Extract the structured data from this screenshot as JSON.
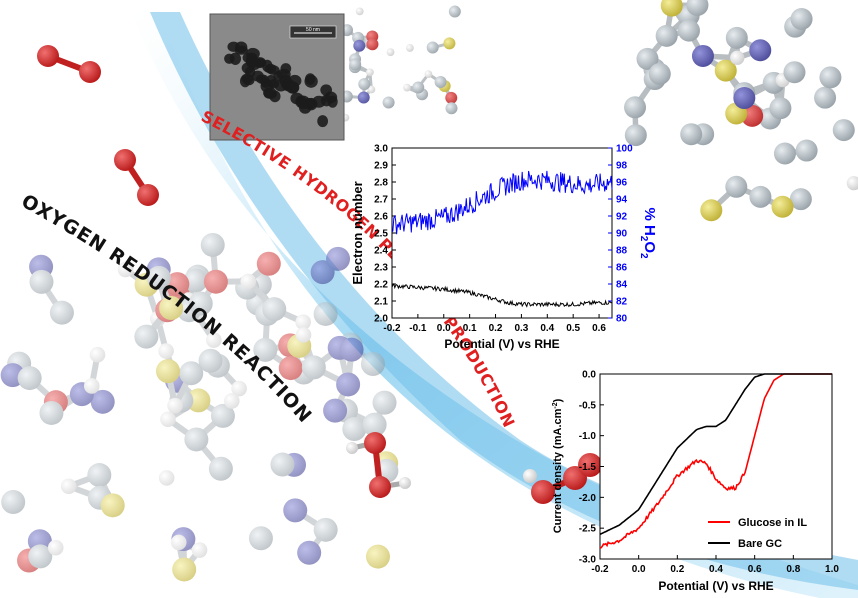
{
  "banner_top": "SELECTIVE HYDROGEN PEROXIDE PRODUCTION",
  "banner_bottom": "OXYGEN REDUCTION REACTION",
  "tem_scale_label": "50 nm",
  "colors": {
    "oxygen": "#d42a2a",
    "nitrogen": "#4a4aa8",
    "sulfur": "#d6c83a",
    "carbon": "#9aa6ad",
    "hydrogen": "#ffffff",
    "swoosh": "#7cc6ec",
    "banner_red": "#e02020",
    "blue_series": "#0000ff",
    "red_series": "#ff0000",
    "black_series": "#000000"
  },
  "chart_data": [
    {
      "type": "line",
      "xlabel": "Potential (V) vs RHE",
      "ylabel": "Electron number",
      "y2label_prefix": "% H",
      "y2label_sub1": "2",
      "y2label_mid": "O",
      "y2label_sub2": "2",
      "xlim": [
        -0.2,
        0.65
      ],
      "ylim": [
        2.0,
        3.0
      ],
      "y2lim": [
        80,
        100
      ],
      "xticks": [
        "-0.2",
        "-0.1",
        "0.0",
        "0.1",
        "0.2",
        "0.3",
        "0.4",
        "0.5",
        "0.6"
      ],
      "yticks": [
        "2.0",
        "2.1",
        "2.2",
        "2.3",
        "2.4",
        "2.5",
        "2.6",
        "2.7",
        "2.8",
        "2.9",
        "3.0"
      ],
      "y2ticks": [
        "80",
        "82",
        "84",
        "86",
        "88",
        "90",
        "92",
        "94",
        "96",
        "98",
        "100"
      ],
      "series": [
        {
          "axis": "left",
          "color": "#000000",
          "x": [
            -0.2,
            -0.1,
            0.0,
            0.1,
            0.15,
            0.2,
            0.25,
            0.3,
            0.4,
            0.5,
            0.6,
            0.65
          ],
          "y": [
            2.19,
            2.18,
            2.17,
            2.15,
            2.13,
            2.11,
            2.09,
            2.08,
            2.08,
            2.08,
            2.09,
            2.09
          ]
        },
        {
          "axis": "right",
          "color": "#0000ff",
          "x": [
            -0.2,
            -0.1,
            0.0,
            0.05,
            0.1,
            0.15,
            0.2,
            0.25,
            0.3,
            0.35,
            0.4,
            0.45,
            0.5,
            0.55,
            0.6,
            0.65
          ],
          "y": [
            91,
            91.3,
            91.8,
            92.5,
            93.3,
            94.2,
            95.0,
            95.7,
            96.2,
            96.3,
            96.2,
            96.0,
            95.8,
            95.6,
            95.8,
            96.0
          ]
        }
      ]
    },
    {
      "type": "line",
      "xlabel": "Potential (V) vs RHE",
      "ylabel_prefix": "Current density (mA.cm",
      "ylabel_sup": "-2",
      "ylabel_suffix": ")",
      "xlim": [
        -0.2,
        1.0
      ],
      "ylim": [
        -3.0,
        0.0
      ],
      "xticks": [
        "-0.2",
        "0.0",
        "0.2",
        "0.4",
        "0.6",
        "0.8",
        "1.0"
      ],
      "yticks": [
        "0.0",
        "-0.5",
        "-1.0",
        "-1.5",
        "-2.0",
        "-2.5",
        "-3.0"
      ],
      "legend_position": "bottom-right",
      "series": [
        {
          "name": "Glucose in IL",
          "color": "#ff0000",
          "x": [
            -0.2,
            -0.1,
            0.0,
            0.1,
            0.2,
            0.3,
            0.35,
            0.4,
            0.45,
            0.5,
            0.55,
            0.6,
            0.65,
            0.7,
            0.75,
            0.8,
            1.0
          ],
          "y": [
            -2.8,
            -2.7,
            -2.5,
            -2.1,
            -1.65,
            -1.4,
            -1.45,
            -1.7,
            -1.85,
            -1.85,
            -1.6,
            -1.0,
            -0.4,
            -0.1,
            0.0,
            0.0,
            0.0
          ]
        },
        {
          "name": "Bare GC",
          "color": "#000000",
          "x": [
            -0.2,
            -0.1,
            0.0,
            0.1,
            0.2,
            0.3,
            0.35,
            0.4,
            0.45,
            0.5,
            0.55,
            0.6,
            0.65,
            0.7,
            0.8,
            1.0
          ],
          "y": [
            -2.6,
            -2.45,
            -2.2,
            -1.7,
            -1.2,
            -0.9,
            -0.85,
            -0.85,
            -0.75,
            -0.5,
            -0.25,
            -0.05,
            0.0,
            0.0,
            0.0,
            0.0
          ]
        }
      ]
    }
  ]
}
